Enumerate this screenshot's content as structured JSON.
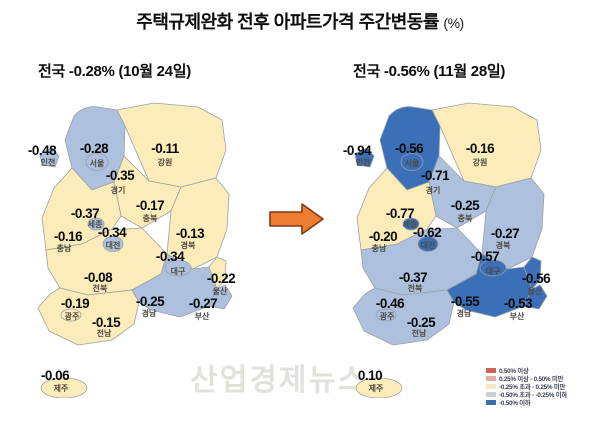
{
  "title": {
    "text": "주택규제완화 전후 아파트가격 주간변동률",
    "unit": "(%)"
  },
  "watermark": "산업경제뉴스",
  "maps": [
    {
      "id": "before",
      "header": "전국 -0.28% (10월 24일)",
      "regions": [
        {
          "id": "incheon",
          "name": "인천",
          "value": "-0.48"
        },
        {
          "id": "seoul",
          "name": "서울",
          "value": "-0.28"
        },
        {
          "id": "gyeonggi",
          "name": "경기",
          "value": "-0.35"
        },
        {
          "id": "gangwon",
          "name": "강원",
          "value": "-0.11"
        },
        {
          "id": "chungbuk",
          "name": "충북",
          "value": "-0.17"
        },
        {
          "id": "sejong",
          "name": "세종",
          "value": "-0.37"
        },
        {
          "id": "daejeon",
          "name": "대전",
          "value": "-0.34"
        },
        {
          "id": "chungnam",
          "name": "충남",
          "value": "-0.16"
        },
        {
          "id": "gyeongbuk",
          "name": "경북",
          "value": "-0.13"
        },
        {
          "id": "daegu",
          "name": "대구",
          "value": "-0.34"
        },
        {
          "id": "jeonbuk",
          "name": "전북",
          "value": "-0.08"
        },
        {
          "id": "ulsan",
          "name": "울산",
          "value": "-0.22"
        },
        {
          "id": "gwangju",
          "name": "광주",
          "value": "-0.19"
        },
        {
          "id": "gyeongnam",
          "name": "경남",
          "value": "-0.25"
        },
        {
          "id": "busan",
          "name": "부산",
          "value": "-0.27"
        },
        {
          "id": "jeonnam",
          "name": "전남",
          "value": "-0.15"
        },
        {
          "id": "jeju",
          "name": "제주",
          "value": "-0.06"
        }
      ]
    },
    {
      "id": "after",
      "header": "전국 -0.56% (11월 28일)",
      "regions": [
        {
          "id": "incheon",
          "name": "인천",
          "value": "-0.94"
        },
        {
          "id": "seoul",
          "name": "서울",
          "value": "-0.56"
        },
        {
          "id": "gyeonggi",
          "name": "경기",
          "value": "-0.71"
        },
        {
          "id": "gangwon",
          "name": "강원",
          "value": "-0.16"
        },
        {
          "id": "chungbuk",
          "name": "충북",
          "value": "-0.25"
        },
        {
          "id": "sejong",
          "name": "세종",
          "value": "-0.77"
        },
        {
          "id": "daejeon",
          "name": "대전",
          "value": "-0.62"
        },
        {
          "id": "chungnam",
          "name": "충남",
          "value": "-0.20"
        },
        {
          "id": "gyeongbuk",
          "name": "경북",
          "value": "-0.27"
        },
        {
          "id": "daegu",
          "name": "대구",
          "value": "-0.57"
        },
        {
          "id": "jeonbuk",
          "name": "전북",
          "value": "-0.37"
        },
        {
          "id": "ulsan",
          "name": "울산",
          "value": "-0.56"
        },
        {
          "id": "gwangju",
          "name": "광주",
          "value": "-0.46"
        },
        {
          "id": "gyeongnam",
          "name": "경남",
          "value": "-0.55"
        },
        {
          "id": "busan",
          "name": "부산",
          "value": "-0.53"
        },
        {
          "id": "jeonnam",
          "name": "전남",
          "value": "-0.25"
        },
        {
          "id": "jeju",
          "name": "제주",
          "value": "0.10"
        }
      ]
    }
  ],
  "legend": {
    "items": [
      {
        "color": "#c9605c",
        "label": "0.50% 이상"
      },
      {
        "color": "#e9aba4",
        "label": "0.25% 이상 - 0.50% 미만"
      },
      {
        "color": "#f5e8c2",
        "label": "-0.25% 초과 - 0.25% 미만"
      },
      {
        "color": "#c7d0da",
        "label": "-0.50% 초과 - -0.25% 이하"
      },
      {
        "color": "#3a6cb0",
        "label": "-0.50% 이하"
      }
    ]
  },
  "palette": {
    "cream": "#fcecba",
    "light_blue": "#adc1de",
    "dark_blue": "#3b6fb8",
    "salmon": "#e9aba4",
    "red": "#c9605c",
    "border": "#9aa0a6"
  },
  "arrow": {
    "direction": "right",
    "fill": "#ee7d31",
    "stroke": "#7f3a12"
  },
  "chart_data": {
    "type": "heatmap",
    "subtype": "choropleth-map-pair",
    "title": "주택규제완화 전후 아파트가격 주간변동률 (%)",
    "categories": [
      "인천",
      "서울",
      "경기",
      "강원",
      "충북",
      "세종",
      "대전",
      "충남",
      "경북",
      "대구",
      "전북",
      "울산",
      "광주",
      "경남",
      "부산",
      "전남",
      "제주"
    ],
    "series": [
      {
        "name": "전국 -0.28% (10월 24일)",
        "national": -0.28,
        "values": [
          -0.48,
          -0.28,
          -0.35,
          -0.11,
          -0.17,
          -0.37,
          -0.34,
          -0.16,
          -0.13,
          -0.34,
          -0.08,
          -0.22,
          -0.19,
          -0.25,
          -0.27,
          -0.15,
          -0.06
        ]
      },
      {
        "name": "전국 -0.56% (11월 28일)",
        "national": -0.56,
        "values": [
          -0.94,
          -0.56,
          -0.71,
          -0.16,
          -0.25,
          -0.77,
          -0.62,
          -0.2,
          -0.27,
          -0.57,
          -0.37,
          -0.56,
          -0.46,
          -0.55,
          -0.53,
          -0.25,
          0.1
        ]
      }
    ],
    "legend_position": "bottom-right",
    "color_thresholds": [
      {
        "range": "v >= 0.50",
        "color": "#c9605c"
      },
      {
        "range": "0.25 <= v < 0.50",
        "color": "#e9aba4"
      },
      {
        "range": "-0.25 < v < 0.25",
        "color": "#f5e8c2"
      },
      {
        "range": "-0.50 < v <= -0.25",
        "color": "#c7d0da"
      },
      {
        "range": "v <= -0.50",
        "color": "#3a6cb0"
      }
    ]
  }
}
